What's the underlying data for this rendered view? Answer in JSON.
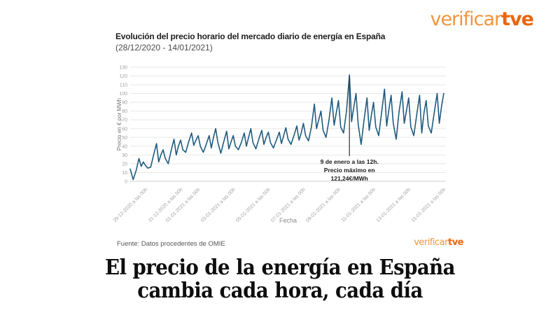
{
  "brand": {
    "name": "verificartve",
    "prefix": "verificar",
    "suffix": "tve",
    "prefix_color": "#F2953C",
    "suffix_color": "#EA650D"
  },
  "chart": {
    "title": "Evolución del precio horario del mercado diario de energía en España",
    "subtitle": "(28/12/2020 - 14/01/2021)",
    "source": "Fuente: Datos procedentes de OMIE"
  },
  "chart_data": {
    "type": "line",
    "title": "Evolución del precio horario del mercado diario de energía en España (28/12/2020 - 14/01/2021)",
    "xlabel": "Fecha",
    "ylabel": "Precio en € por MWh",
    "unit": "€/MWh",
    "ylim": [
      0,
      130
    ],
    "y_ticks": [
      0,
      10,
      20,
      30,
      40,
      50,
      60,
      70,
      80,
      90,
      100,
      110,
      120,
      130
    ],
    "x_ticks": [
      {
        "label": "29-12-2020 a las 00h",
        "hour": 24
      },
      {
        "label": "31-12-2020 a las 00h",
        "hour": 72
      },
      {
        "label": "01-01-2021 a las 00h",
        "hour": 96
      },
      {
        "label": "03-01-2021 a las 00h",
        "hour": 144
      },
      {
        "label": "05-01-2021 a las 00h",
        "hour": 192
      },
      {
        "label": "07-01-2021 a las 00h",
        "hour": 240
      },
      {
        "label": "09-01-2021 a las 00h",
        "hour": 288
      },
      {
        "label": "11-01-2021 a las 00h",
        "hour": 336
      },
      {
        "label": "13-01-2021 a las 00h",
        "hour": 384
      },
      {
        "label": "15-01-2021 a las 00h",
        "hour": 432
      }
    ],
    "grid": true,
    "legend": "none",
    "line_color": "#1F5B80",
    "sample_hours": [
      0,
      4,
      8,
      12,
      15,
      18,
      21
    ],
    "days": [
      {
        "date": "28-12-2020",
        "values": [
          14,
          2,
          12,
          26,
          17,
          22,
          18
        ]
      },
      {
        "date": "29-12-2020",
        "values": [
          15,
          16,
          30,
          43,
          22,
          30,
          36
        ]
      },
      {
        "date": "30-12-2020",
        "values": [
          26,
          20,
          35,
          48,
          30,
          40,
          47
        ]
      },
      {
        "date": "31-12-2020",
        "values": [
          36,
          33,
          45,
          55,
          41,
          47,
          52
        ]
      },
      {
        "date": "01-01-2021",
        "values": [
          40,
          33,
          42,
          52,
          38,
          50,
          60
        ]
      },
      {
        "date": "02-01-2021",
        "values": [
          44,
          32,
          45,
          57,
          37,
          45,
          52
        ]
      },
      {
        "date": "03-01-2021",
        "values": [
          40,
          36,
          44,
          55,
          40,
          50,
          60
        ]
      },
      {
        "date": "04-01-2021",
        "values": [
          44,
          37,
          48,
          58,
          42,
          50,
          56
        ]
      },
      {
        "date": "05-01-2021",
        "values": [
          44,
          38,
          47,
          56,
          43,
          52,
          61
        ]
      },
      {
        "date": "06-01-2021",
        "values": [
          48,
          42,
          52,
          63,
          47,
          55,
          66
        ]
      },
      {
        "date": "07-01-2021",
        "values": [
          52,
          46,
          62,
          88,
          60,
          70,
          80
        ]
      },
      {
        "date": "08-01-2021",
        "values": [
          58,
          50,
          70,
          95,
          64,
          78,
          92
        ]
      },
      {
        "date": "09-01-2021",
        "values": [
          62,
          55,
          80,
          121.24,
          68,
          85,
          100
        ]
      },
      {
        "date": "10-01-2021",
        "values": [
          65,
          42,
          70,
          95,
          58,
          75,
          90
        ]
      },
      {
        "date": "11-01-2021",
        "values": [
          62,
          52,
          78,
          105,
          63,
          82,
          98
        ]
      },
      {
        "date": "12-01-2021",
        "values": [
          66,
          48,
          80,
          102,
          66,
          80,
          95
        ]
      },
      {
        "date": "13-01-2021",
        "values": [
          62,
          52,
          75,
          98,
          55,
          78,
          92
        ]
      },
      {
        "date": "14-01-2021",
        "values": [
          63,
          55,
          78,
          100,
          66,
          85,
          100
        ]
      }
    ],
    "max_point": {
      "date": "09-01-2021",
      "hour": 12,
      "t": 300,
      "value": 121.24
    },
    "annotation": [
      "9 de enero a las 12h.",
      "Precio máximo en",
      "121,24€/MWh"
    ]
  },
  "headline": {
    "line1": "El precio de la energía en España",
    "line2": "cambia cada hora, cada día"
  }
}
